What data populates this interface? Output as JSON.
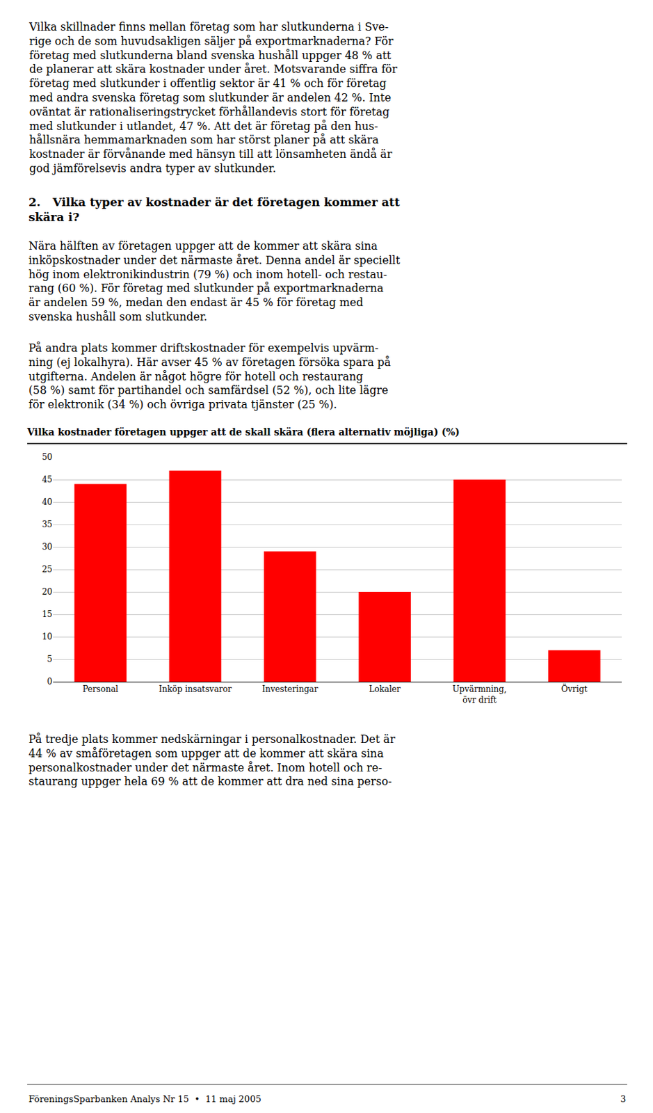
{
  "chart_data": {
    "type": "bar",
    "title": "Vilka kostnader företagen uppger att de skall skära (flera alternativ möjliga) (%)",
    "categories": [
      "Personal",
      "Inköp insatsvaror",
      "Investeringar",
      "Lokaler",
      "Upvärmning,\növr drift",
      "Övrigt"
    ],
    "values": [
      44,
      47,
      29,
      20,
      45,
      7
    ],
    "color": "#FF0000",
    "ylim": [
      0,
      50
    ],
    "yticks": [
      0,
      5,
      10,
      15,
      20,
      25,
      30,
      35,
      40,
      45,
      50
    ],
    "grid": true,
    "annotations": [
      "Vilka skillnader finns mellan företag som har slutkunderna i Sve-\nrige och de som huvudsakligen säljer på exportmarknaderna? För\nföretag med slutkunderna bland svenska hushåll uppger 48 % att\nde planerar att skära kostnader under året. Motsvarande siffra för\nföretag med slutkunder i offentlig sektor är 41 % och för företag\nmed andra svenska företag som slutkunder är andelen 42 %. Inte\noväntat är rationaliseringstrycket förhållandevis stort för företag\nmed slutkunder i utlandet, 47 %. Att det är företag på den hus-\nhållsnära hemmamarknaden som har störst planer på att skära\nkostnader är förvånande med hänsyn till att lönsamheten ändå är\ngod jämförelsevis andra typer av slutkunder.",
      "2.   Vilka typer av kostnader är det företagen kommer att\nskära i?",
      "Nära hälften av företagen uppger att de kommer att skära sina\ninköpskostnader under det närmaste året. Denna andel är speciellt\nhög inom elektronikindustrin (79 %) och inom hotell- och restau-\nrang (60 %). För företag med slutkunder på exportmarknaderna\när andelen 59 %, medan den endast är 45 % för företag med\nsvenska hushåll som slutkunder.",
      "På andra plats kommer driftskostnader för exempelvis upvärm-\nning (ej lokalhyra). Här avser 45 % av företagen försöka spara på\nutgifterna. Andelen är något högre för hotell och restaurang\n(58 %) samt för partihandel och samfärdsel (52 %), och lite lägre\nför elektronik (34 %) och övriga privata tjänster (25 %).",
      "På tredje plats kommer nedskärningar i personalkostnader. Det är\n44 % av småföretagen som uppger att de kommer att skära sina\npersonalkostnader under det närmaste året. Inom hotell och re-\nstaurang uppger hela 69 % att de kommer att dra ned sina perso-",
      "FöreningsSparbanken Analys Nr 15  •  11 maj 2005",
      "3"
    ]
  }
}
